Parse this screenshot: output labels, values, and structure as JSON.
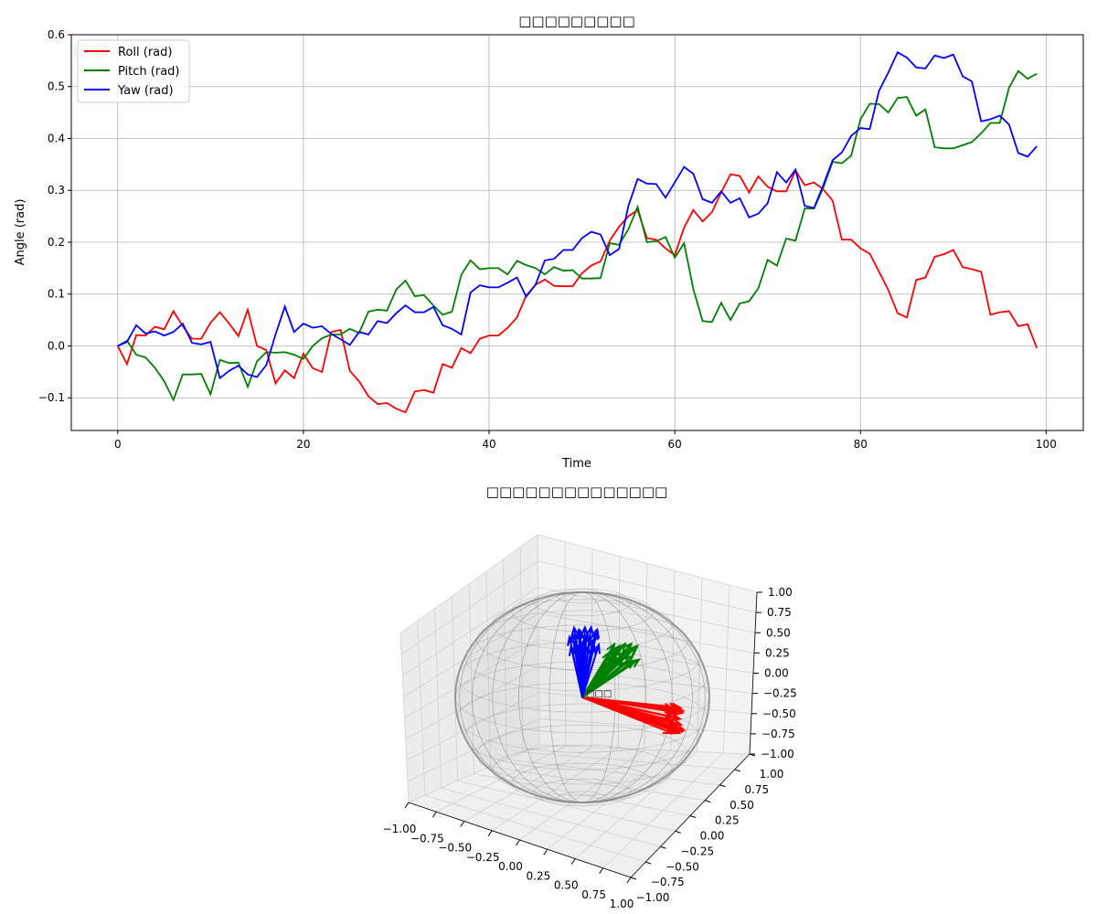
{
  "colors": {
    "roll": "#ff0000",
    "pitch": "#008000",
    "yaw": "#0000ff",
    "grid": "#b0b0b0",
    "sphere": "#808080",
    "pane": "#f2f2f2"
  },
  "chart_data": [
    {
      "type": "line",
      "title": "□□□□□□□□□",
      "xlabel": "Time",
      "ylabel": "Angle (rad)",
      "xlim": [
        -5,
        104
      ],
      "ylim": [
        -0.163,
        0.6
      ],
      "xticks": [
        0,
        20,
        40,
        60,
        80,
        100
      ],
      "yticks": [
        -0.1,
        0.0,
        0.1,
        0.2,
        0.3,
        0.4,
        0.5,
        0.6
      ],
      "ytick_labels": [
        "−0.1",
        "0.0",
        "0.1",
        "0.2",
        "0.3",
        "0.4",
        "0.5",
        "0.6"
      ],
      "grid": true,
      "legend_position": "upper-left",
      "series": [
        {
          "name": "Roll (rad)",
          "color": "#ff0000",
          "values": [
            0,
            -0.035,
            0.021,
            0.02,
            0.037,
            0.032,
            0.067,
            0.038,
            0.014,
            0.014,
            0.045,
            0.065,
            0.043,
            0.019,
            0.07,
            0.0,
            -0.008,
            -0.072,
            -0.047,
            -0.062,
            -0.015,
            -0.043,
            -0.05,
            0.027,
            0.031,
            -0.048,
            -0.068,
            -0.097,
            -0.112,
            -0.11,
            -0.121,
            -0.128,
            -0.088,
            -0.085,
            -0.09,
            -0.035,
            -0.042,
            -0.004,
            -0.014,
            0.014,
            0.02,
            0.02,
            0.035,
            0.055,
            0.097,
            0.118,
            0.128,
            0.116,
            0.115,
            0.115,
            0.14,
            0.155,
            0.163,
            0.203,
            0.23,
            0.25,
            0.262,
            0.208,
            0.205,
            0.188,
            0.175,
            0.228,
            0.262,
            0.24,
            0.258,
            0.296,
            0.331,
            0.328,
            0.296,
            0.327,
            0.307,
            0.298,
            0.298,
            0.338,
            0.31,
            0.315,
            0.302,
            0.28,
            0.205,
            0.205,
            0.188,
            0.178,
            0.143,
            0.108,
            0.063,
            0.055,
            0.127,
            0.132,
            0.172,
            0.177,
            0.185,
            0.152,
            0.148,
            0.143,
            0.06,
            0.065,
            0.067,
            0.038,
            0.042,
            -0.004
          ]
        },
        {
          "name": "Pitch (rad)",
          "color": "#008000",
          "values": [
            0,
            0.01,
            -0.017,
            -0.022,
            -0.042,
            -0.068,
            -0.104,
            -0.055,
            -0.055,
            -0.054,
            -0.093,
            -0.027,
            -0.033,
            -0.032,
            -0.079,
            -0.03,
            -0.012,
            -0.013,
            -0.012,
            -0.017,
            -0.025,
            0.0,
            0.015,
            0.022,
            0.022,
            0.033,
            0.025,
            0.066,
            0.07,
            0.068,
            0.109,
            0.126,
            0.096,
            0.098,
            0.078,
            0.06,
            0.066,
            0.137,
            0.165,
            0.148,
            0.15,
            0.15,
            0.138,
            0.164,
            0.156,
            0.15,
            0.138,
            0.152,
            0.145,
            0.146,
            0.13,
            0.13,
            0.131,
            0.198,
            0.195,
            0.225,
            0.268,
            0.2,
            0.202,
            0.21,
            0.17,
            0.198,
            0.11,
            0.048,
            0.046,
            0.083,
            0.05,
            0.082,
            0.086,
            0.111,
            0.166,
            0.155,
            0.207,
            0.203,
            0.265,
            0.265,
            0.305,
            0.355,
            0.352,
            0.367,
            0.437,
            0.467,
            0.466,
            0.45,
            0.478,
            0.48,
            0.444,
            0.456,
            0.383,
            0.381,
            0.381,
            0.387,
            0.393,
            0.41,
            0.43,
            0.43,
            0.498,
            0.53,
            0.515,
            0.525
          ]
        },
        {
          "name": "Yaw (rad)",
          "color": "#0000ff",
          "values": [
            0,
            0.008,
            0.04,
            0.024,
            0.028,
            0.02,
            0.027,
            0.043,
            0.006,
            0.003,
            0.008,
            -0.062,
            -0.048,
            -0.038,
            -0.055,
            -0.06,
            -0.037,
            0.022,
            0.076,
            0.027,
            0.043,
            0.035,
            0.038,
            0.023,
            0.013,
            0.002,
            0.027,
            0.022,
            0.048,
            0.044,
            0.063,
            0.078,
            0.065,
            0.065,
            0.075,
            0.04,
            0.033,
            0.022,
            0.103,
            0.117,
            0.113,
            0.113,
            0.122,
            0.132,
            0.095,
            0.118,
            0.165,
            0.168,
            0.185,
            0.185,
            0.208,
            0.22,
            0.215,
            0.175,
            0.187,
            0.27,
            0.322,
            0.313,
            0.312,
            0.286,
            0.315,
            0.345,
            0.332,
            0.283,
            0.276,
            0.298,
            0.276,
            0.285,
            0.248,
            0.255,
            0.275,
            0.335,
            0.315,
            0.34,
            0.27,
            0.266,
            0.31,
            0.358,
            0.373,
            0.405,
            0.42,
            0.418,
            0.492,
            0.527,
            0.566,
            0.556,
            0.537,
            0.535,
            0.56,
            0.555,
            0.562,
            0.52,
            0.51,
            0.433,
            0.437,
            0.444,
            0.427,
            0.372,
            0.365,
            0.385
          ]
        }
      ]
    },
    {
      "type": "3d-quiver",
      "title": "□□□□□□□□□□□□□□",
      "xlim": [
        -1.0,
        1.0
      ],
      "ylim": [
        -1.0,
        1.0
      ],
      "zlim": [
        -1.0,
        1.0
      ],
      "xtick_labels": [
        "−1.00",
        "−0.75",
        "−0.50",
        "−0.25",
        "0.00",
        "0.25",
        "0.50",
        "0.75",
        "1.00"
      ],
      "ytick_labels": [
        "−1.00",
        "−0.75",
        "−0.50",
        "−0.25",
        "0.00",
        "0.25",
        "0.50",
        "0.75",
        "1.00"
      ],
      "ztick_labels": [
        "−1.00",
        "−0.75",
        "−0.50",
        "−0.25",
        "0.00",
        "0.25",
        "0.50",
        "0.75",
        "1.00"
      ],
      "origin_label": "□□□",
      "unit_sphere": true,
      "vector_groups": [
        {
          "axis": "x",
          "color": "#ff0000",
          "count": 20
        },
        {
          "axis": "y",
          "color": "#008000",
          "count": 20
        },
        {
          "axis": "z",
          "color": "#0000ff",
          "count": 20
        }
      ]
    }
  ]
}
